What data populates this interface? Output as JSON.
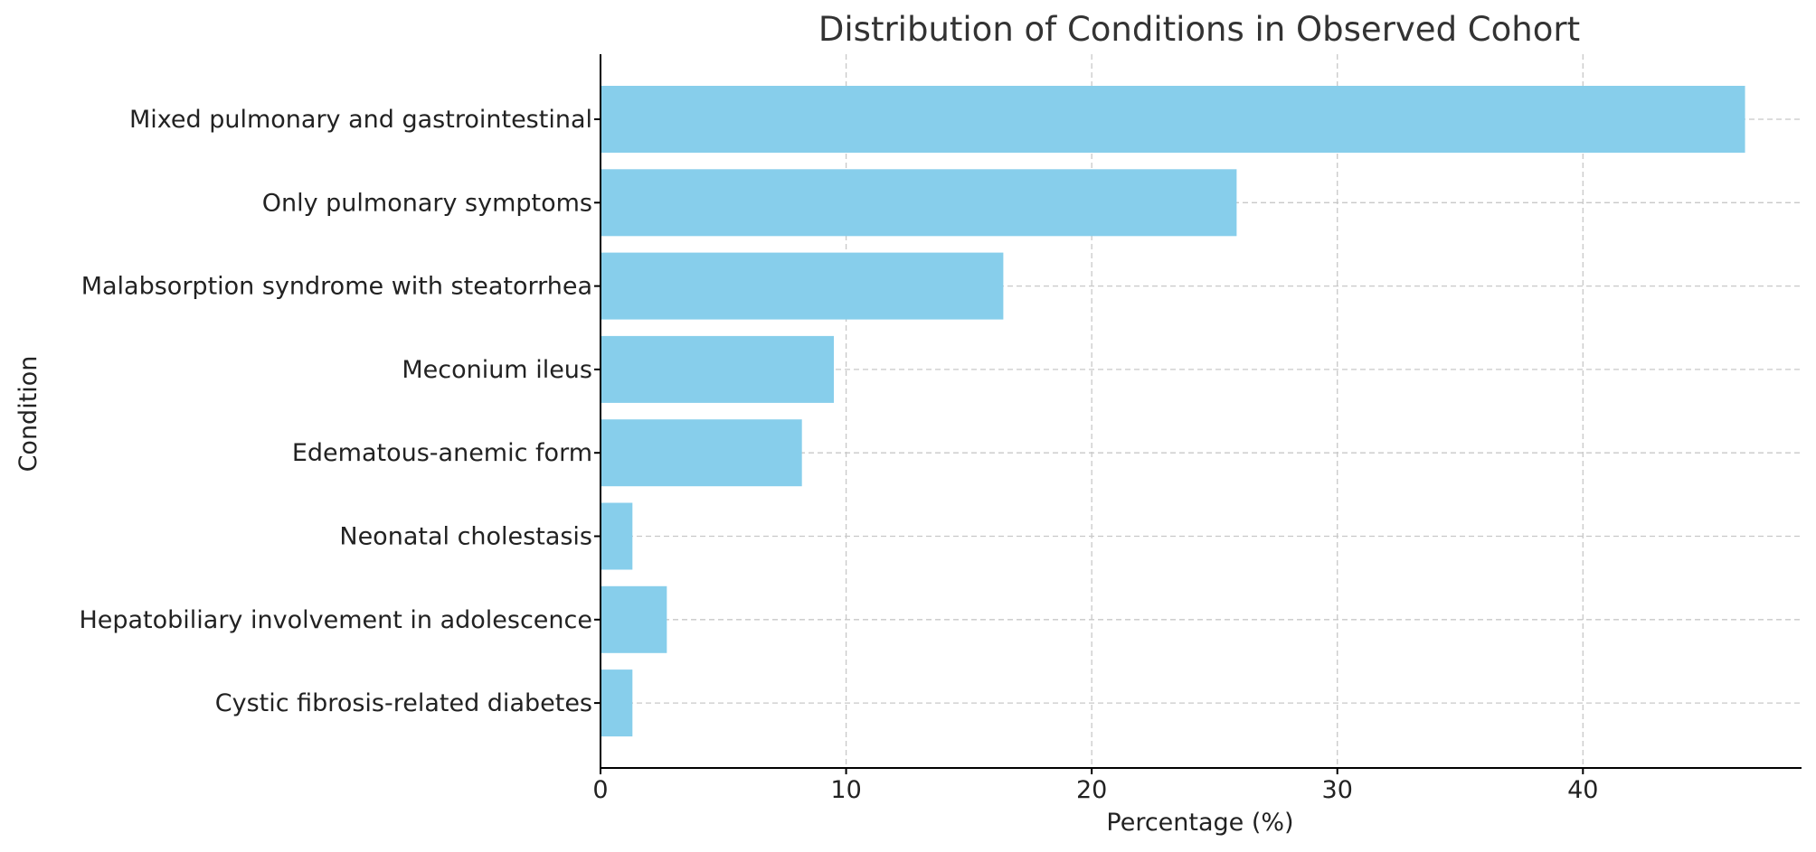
{
  "chart_data": {
    "type": "bar",
    "orientation": "horizontal",
    "title": "Distribution of Conditions in Observed Cohort",
    "xlabel": "Percentage (%)",
    "ylabel": "Condition",
    "categories": [
      "Mixed pulmonary and gastrointestinal",
      "Only pulmonary symptoms",
      "Malabsorption syndrome with steatorrhea",
      "Meconium ileus",
      "Edematous-anemic form",
      "Neonatal cholestasis",
      "Hepatobiliary involvement in adolescence",
      "Cystic fibrosis-related diabetes"
    ],
    "values": [
      46.6,
      25.9,
      16.4,
      9.5,
      8.2,
      1.3,
      2.7,
      1.3
    ],
    "xlim": [
      0,
      48.9
    ],
    "xticks": [
      0,
      10,
      20,
      30,
      40
    ],
    "xtick_labels": [
      "0",
      "10",
      "20",
      "30",
      "40"
    ],
    "grid": true,
    "bar_color": "#87ceeb",
    "legend": "none"
  }
}
